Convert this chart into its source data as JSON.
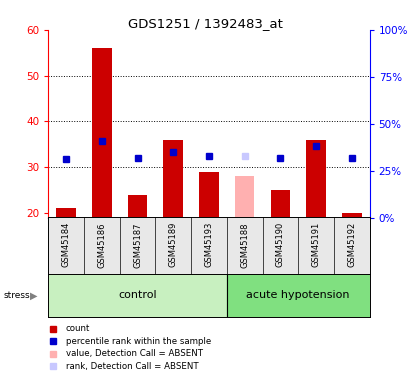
{
  "title": "GDS1251 / 1392483_at",
  "samples": [
    "GSM45184",
    "GSM45186",
    "GSM45187",
    "GSM45189",
    "GSM45193",
    "GSM45188",
    "GSM45190",
    "GSM45191",
    "GSM45192"
  ],
  "bar_values": [
    21,
    56,
    24,
    36,
    29,
    28,
    25,
    36,
    20
  ],
  "bar_absent": [
    false,
    false,
    false,
    false,
    false,
    true,
    false,
    false,
    false
  ],
  "rank_values": [
    31,
    41,
    32,
    35,
    33,
    33,
    32,
    38,
    32
  ],
  "rank_absent": [
    false,
    false,
    false,
    false,
    false,
    true,
    false,
    false,
    false
  ],
  "ylim_left": [
    19,
    60
  ],
  "ylim_right": [
    0,
    100
  ],
  "yticks_left": [
    20,
    30,
    40,
    50,
    60
  ],
  "yticks_right": [
    0,
    25,
    50,
    75,
    100
  ],
  "ytick_labels_right": [
    "0%",
    "25%",
    "50%",
    "75%",
    "100%"
  ],
  "group_labels": [
    "control",
    "acute hypotension"
  ],
  "bar_color_present": "#cc0000",
  "bar_color_absent": "#ffb0b0",
  "rank_color_present": "#0000cc",
  "rank_color_absent": "#c8c8ff",
  "stress_label": "stress",
  "grid_dotted_at": [
    30,
    40,
    50
  ],
  "bg_color": "#e8e8e8",
  "control_color": "#c8f0c0",
  "acute_color": "#80e080"
}
